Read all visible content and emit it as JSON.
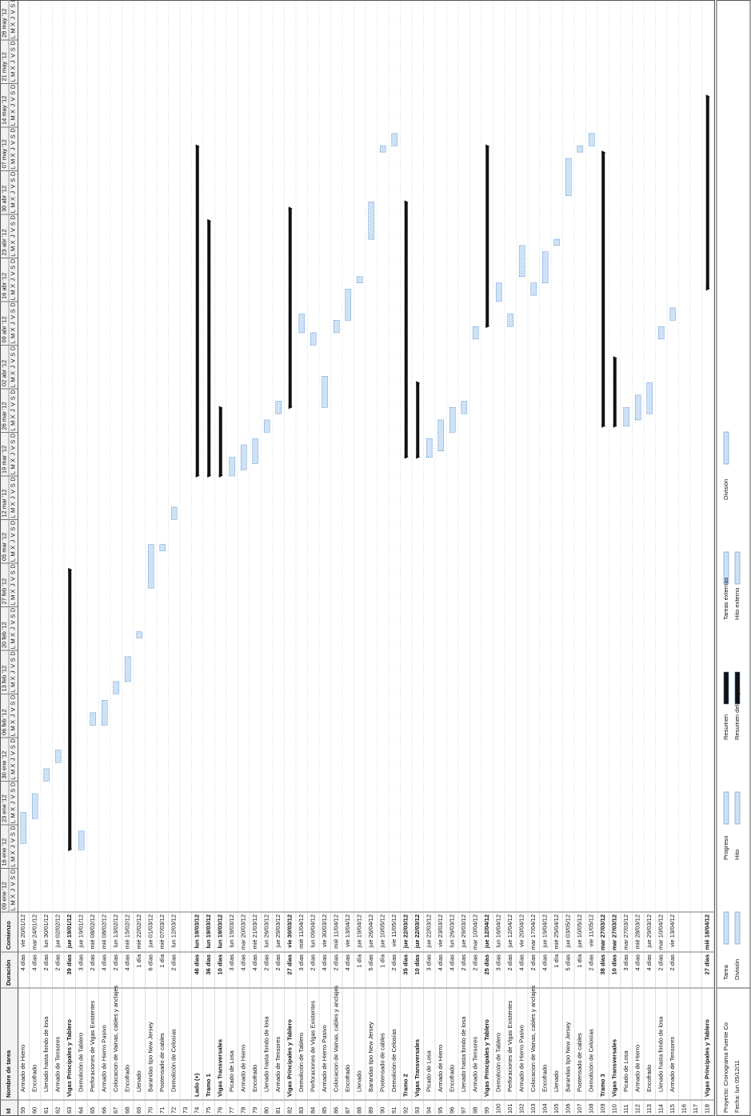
{
  "header": {
    "columns": [
      "Id",
      "Nombre de tarea",
      "Duración",
      "Comienzo"
    ]
  },
  "timeline": {
    "weeks": [
      "09 ene '12",
      "16 ene '12",
      "23 ene '12",
      "30 ene '12",
      "06 feb '12",
      "13 feb '12",
      "20 feb '12",
      "27 feb '12",
      "05 mar '12",
      "12 mar '12",
      "19 mar '12",
      "26 mar '12",
      "02 abr '12",
      "09 abr '12",
      "16 abr '12",
      "23 abr '12",
      "30 abr '12",
      "07 may '12",
      "14 may '12",
      "21 may '12",
      "28 may '12"
    ],
    "days": [
      "L",
      "M",
      "X",
      "J",
      "V",
      "S",
      "D"
    ]
  },
  "rows": [
    {
      "id": 59,
      "name": "Armado de Hierro",
      "duration": "4 días",
      "start": "vie 20/01/12"
    },
    {
      "id": 60,
      "name": "Encofrado",
      "duration": "4 días",
      "start": "mar 24/01/12"
    },
    {
      "id": 61,
      "name": "Llenado hasta fondo de losa",
      "duration": "2 días",
      "start": "lun 30/01/12"
    },
    {
      "id": 62,
      "name": "Armado de Tensores",
      "duration": "2 días",
      "start": "jue 02/02/12"
    },
    {
      "id": 63,
      "name": "Vigas Principales y Tablero",
      "duration": "39 días",
      "start": "jue 19/01/12",
      "summary": true
    },
    {
      "id": 64,
      "name": "Demolición de Tablero",
      "duration": "3 días",
      "start": "jue 19/01/12"
    },
    {
      "id": 65,
      "name": "Perforaciones de Vigas Existentes",
      "duration": "2 días",
      "start": "mié 08/02/12"
    },
    {
      "id": 66,
      "name": "Armado de Hierro Pasivo",
      "duration": "4 días",
      "start": "mié 08/02/12"
    },
    {
      "id": 67,
      "name": "Colocacion de Vainas, cables y anclajes",
      "duration": "2 días",
      "start": "lun 13/02/12"
    },
    {
      "id": 68,
      "name": "Encofrado",
      "duration": "4 días",
      "start": "mié 15/02/12"
    },
    {
      "id": 69,
      "name": "Llenado",
      "duration": "1 día",
      "start": "mié 22/02/12"
    },
    {
      "id": 70,
      "name": "Barandas tipo New Jersey",
      "duration": "6 días",
      "start": "jue 01/03/12"
    },
    {
      "id": 71,
      "name": "Postensado de cables",
      "duration": "1 día",
      "start": "mié 07/03/12"
    },
    {
      "id": 72,
      "name": "Demolición de Celosías",
      "duration": "2 días",
      "start": "lun 12/03/12"
    },
    {
      "id": 73
    },
    {
      "id": 74,
      "name": "Lado (+)",
      "duration": "46 días",
      "start": "lun 19/03/12",
      "summary": true
    },
    {
      "id": 75,
      "name": "Tramo 1",
      "duration": "36 días",
      "start": "lun 19/03/12",
      "summary": true
    },
    {
      "id": 76,
      "name": "Vigas Transversales",
      "duration": "10 días",
      "start": "lun 19/03/12",
      "summary": true
    },
    {
      "id": 77,
      "name": "Picado de Losa",
      "duration": "3 días",
      "start": "lun 19/03/12"
    },
    {
      "id": 78,
      "name": "Armado de Hierro",
      "duration": "4 días",
      "start": "mar 20/03/12"
    },
    {
      "id": 79,
      "name": "Encofrado",
      "duration": "4 días",
      "start": "mié 21/03/12"
    },
    {
      "id": 80,
      "name": "Llenado hasta fondo de losa",
      "duration": "2 días",
      "start": "lun 26/03/12"
    },
    {
      "id": 81,
      "name": "Armado de Tensores",
      "duration": "2 días",
      "start": "jue 29/03/12"
    },
    {
      "id": 82,
      "name": "Vigas Principales y Tablero",
      "duration": "27 días",
      "start": "vie 30/03/12",
      "summary": true
    },
    {
      "id": 83,
      "name": "Demolición de Tablero",
      "duration": "3 días",
      "start": "mié 11/04/12"
    },
    {
      "id": 84,
      "name": "Perforaciones de Vigas Existentes",
      "duration": "2 días",
      "start": "lun 09/04/12"
    },
    {
      "id": 85,
      "name": "Armado de Hierro Pasivo",
      "duration": "4 días",
      "start": "vie 30/03/12"
    },
    {
      "id": 86,
      "name": "Colocacion de Vainas, cables y anclajes",
      "duration": "2 días",
      "start": "mié 11/04/12"
    },
    {
      "id": 87,
      "name": "Encofrado",
      "duration": "4 días",
      "start": "vie 13/04/12"
    },
    {
      "id": 88,
      "name": "Llenado",
      "duration": "1 día",
      "start": "jue 19/04/12"
    },
    {
      "id": 89,
      "name": "Barandas tipo New Jersey",
      "duration": "5 días",
      "start": "jue 26/04/12"
    },
    {
      "id": 90,
      "name": "Postensado de cables",
      "duration": "1 día",
      "start": "jue 10/05/12"
    },
    {
      "id": 91,
      "name": "Demolición de Celosías",
      "duration": "2 días",
      "start": "vie 11/05/12"
    },
    {
      "id": 92,
      "name": "Tramo 2",
      "duration": "35 días",
      "start": "jue 22/03/12",
      "summary": true
    },
    {
      "id": 93,
      "name": "Vigas Transversales",
      "duration": "10 días",
      "start": "jue 22/03/12",
      "summary": true
    },
    {
      "id": 94,
      "name": "Picado de Losa",
      "duration": "3 días",
      "start": "jue 22/03/12"
    },
    {
      "id": 95,
      "name": "Armado de Hierro",
      "duration": "4 días",
      "start": "vie 23/03/12"
    },
    {
      "id": 96,
      "name": "Encofrado",
      "duration": "4 días",
      "start": "lun 26/03/12"
    },
    {
      "id": 97,
      "name": "Llenado hasta fondo de losa",
      "duration": "2 días",
      "start": "jue 29/03/12"
    },
    {
      "id": 98,
      "name": "Armado de Tensores",
      "duration": "2 días",
      "start": "mar 10/04/12"
    },
    {
      "id": 99,
      "name": "Vigas Principales y Tablero",
      "duration": "25 días",
      "start": "jue 12/04/12",
      "summary": true
    },
    {
      "id": 100,
      "name": "Demolición de Tablero",
      "duration": "3 días",
      "start": "lun 16/04/12"
    },
    {
      "id": 101,
      "name": "Perforaciones de Vigas Existentes",
      "duration": "2 días",
      "start": "jue 12/04/12"
    },
    {
      "id": 102,
      "name": "Armado de Hierro Pasivo",
      "duration": "4 días",
      "start": "vie 20/04/12"
    },
    {
      "id": 103,
      "name": "Colocacion de Vainas, cables y anclajes",
      "duration": "2 días",
      "start": "mar 17/04/12"
    },
    {
      "id": 104,
      "name": "Encofrado",
      "duration": "4 días",
      "start": "jue 19/04/12"
    },
    {
      "id": 105,
      "name": "Llenado",
      "duration": "1 día",
      "start": "mié 25/04/12"
    },
    {
      "id": 106,
      "name": "Barandas tipo New Jersey",
      "duration": "5 días",
      "start": "jue 03/05/12"
    },
    {
      "id": 107,
      "name": "Postensado de cables",
      "duration": "1 día",
      "start": "jue 10/05/12"
    },
    {
      "id": 108,
      "name": "Demolición de Celosías",
      "duration": "2 días",
      "start": "vie 11/05/12"
    },
    {
      "id": 109,
      "name": "Tramo 3",
      "duration": "38 días",
      "start": "mar 27/03/12",
      "summary": true
    },
    {
      "id": 110,
      "name": "Vigas Transversales",
      "duration": "10 días",
      "start": "mar 27/03/12",
      "summary": true
    },
    {
      "id": 111,
      "name": "Picado de Losa",
      "duration": "3 días",
      "start": "mar 27/03/12"
    },
    {
      "id": 112,
      "name": "Armado de Hierro",
      "duration": "4 días",
      "start": "mié 28/03/12"
    },
    {
      "id": 113,
      "name": "Encofrado",
      "duration": "4 días",
      "start": "jue 29/03/12"
    },
    {
      "id": 114,
      "name": "Llenado hasta fondo de losa",
      "duration": "2 días",
      "start": "mar 10/04/12"
    },
    {
      "id": 115,
      "name": "Armado de Tensores",
      "duration": "2 días",
      "start": "vie 13/04/12"
    },
    {
      "id": 116
    },
    {
      "id": 117
    },
    {
      "id": 118,
      "name": "Vigas Principales y Tablero",
      "duration": "27 días",
      "start": "mié 18/04/12",
      "summary": true
    }
  ],
  "legend": {
    "project": "Proyecto: Cronograma Puente Co",
    "date": "Fecha: lun 05/12/11",
    "items": [
      "Tarea",
      "División",
      "Progreso",
      "Hito",
      "Resumen",
      "Resumen del proyecto",
      "Tareas externas",
      "Hito externo",
      "División"
    ]
  }
}
